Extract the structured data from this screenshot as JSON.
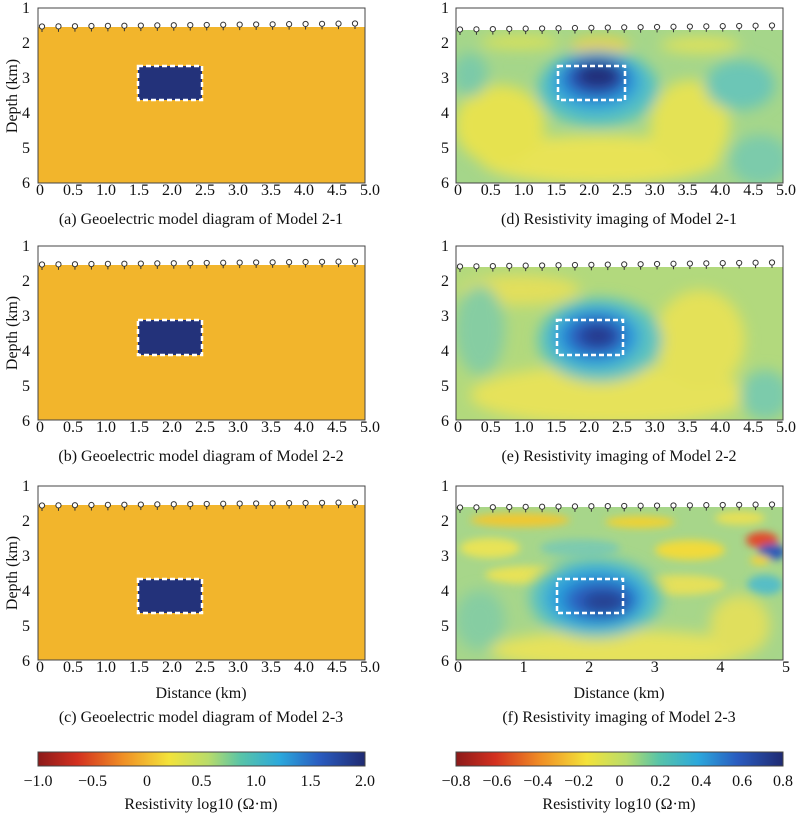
{
  "panels": [
    {
      "id": "a",
      "kind": "model",
      "caption": "(a) Geoelectric model diagram of Model 2-1",
      "ylabel": "Depth (km)",
      "xlabel": "",
      "block": {
        "x": [
          1.6,
          2.5
        ],
        "z": [
          2.65,
          3.6
        ]
      }
    },
    {
      "id": "b",
      "kind": "model",
      "caption": "(b) Geoelectric model diagram of Model 2-2",
      "ylabel": "Depth (km)",
      "xlabel": "",
      "block": {
        "x": [
          1.6,
          2.5
        ],
        "z": [
          3.1,
          4.05
        ]
      }
    },
    {
      "id": "c",
      "kind": "model",
      "caption": "(c) Geoelectric model diagram of Model 2-3",
      "ylabel": "Depth (km)",
      "xlabel": "Distance (km)",
      "block": {
        "x": [
          1.6,
          2.5
        ],
        "z": [
          3.6,
          4.55
        ]
      }
    },
    {
      "id": "d",
      "kind": "inversion",
      "caption": "(d) Resistivity imaging of Model 2-1",
      "ylabel": "",
      "xlabel": "",
      "block": {
        "x": [
          1.6,
          2.6
        ],
        "z": [
          2.65,
          3.6
        ]
      }
    },
    {
      "id": "e",
      "kind": "inversion",
      "caption": "(e) Resistivity imaging of Model 2-2",
      "ylabel": "",
      "xlabel": "",
      "block": {
        "x": [
          1.6,
          2.6
        ],
        "z": [
          3.1,
          4.1
        ]
      }
    },
    {
      "id": "f",
      "kind": "inversion",
      "caption": "(f) Resistivity imaging of Model 2-3",
      "ylabel": "",
      "xlabel": "Distance (km)",
      "block": {
        "x": [
          1.6,
          2.6
        ],
        "z": [
          3.6,
          4.6
        ]
      }
    }
  ],
  "chart_data": [
    {
      "type": "heatmap",
      "title": "(a) Geoelectric model diagram of Model 2-1",
      "xlabel": "",
      "ylabel": "Depth (km)",
      "xlim": [
        0,
        5
      ],
      "ylim": [
        1,
        6
      ],
      "surface_depth_km": 1.55,
      "background_log10": 0.0,
      "anomaly": {
        "log10": 2.0,
        "x_km": [
          1.6,
          2.5
        ],
        "depth_km": [
          2.65,
          3.6
        ]
      },
      "electrodes": 20
    },
    {
      "type": "heatmap",
      "title": "(b) Geoelectric model diagram of Model 2-2",
      "xlabel": "",
      "ylabel": "Depth (km)",
      "xlim": [
        0,
        5
      ],
      "ylim": [
        1,
        6
      ],
      "surface_depth_km": 1.55,
      "background_log10": 0.0,
      "anomaly": {
        "log10": 2.0,
        "x_km": [
          1.6,
          2.5
        ],
        "depth_km": [
          3.1,
          4.05
        ]
      },
      "electrodes": 20
    },
    {
      "type": "heatmap",
      "title": "(c) Geoelectric model diagram of Model 2-3",
      "xlabel": "Distance (km)",
      "ylabel": "Depth (km)",
      "xlim": [
        0,
        5
      ],
      "ylim": [
        1,
        6
      ],
      "surface_depth_km": 1.55,
      "background_log10": 0.0,
      "anomaly": {
        "log10": 2.0,
        "x_km": [
          1.6,
          2.5
        ],
        "depth_km": [
          3.6,
          4.55
        ]
      },
      "electrodes": 20
    },
    {
      "type": "heatmap",
      "title": "(d) Resistivity imaging of Model 2-1",
      "xlabel": "",
      "ylabel": "",
      "xlim": [
        0,
        5
      ],
      "ylim": [
        1,
        6
      ],
      "peak_log10": 0.8,
      "peak_x_km": 2.05,
      "peak_depth_km": 3.1,
      "electrodes": 20
    },
    {
      "type": "heatmap",
      "title": "(e) Resistivity imaging of Model 2-2",
      "xlabel": "",
      "ylabel": "",
      "xlim": [
        0,
        5
      ],
      "ylim": [
        1,
        6
      ],
      "peak_log10": 0.6,
      "peak_x_km": 2.05,
      "peak_depth_km": 3.75,
      "electrodes": 20
    },
    {
      "type": "heatmap",
      "title": "(f) Resistivity imaging of Model 2-3",
      "xlabel": "Distance (km)",
      "ylabel": "",
      "xlim": [
        0,
        5
      ],
      "ylim": [
        1,
        6
      ],
      "peak_log10": 0.55,
      "peak_x_km": 2.2,
      "peak_depth_km": 4.1,
      "electrodes": 20
    }
  ],
  "axes": {
    "y_ticks": [
      "1",
      "2",
      "3",
      "4",
      "5",
      "6"
    ],
    "x_ticks_fine": [
      "0",
      "0.5",
      "1.0",
      "1.5",
      "2.0",
      "2.5",
      "3.0",
      "3.5",
      "4.0",
      "4.5",
      "5.0"
    ],
    "x_ticks_coarse": [
      "0",
      "1",
      "2",
      "3",
      "4",
      "5"
    ]
  },
  "colorbars": [
    {
      "label": "Resistivity log10 (Ω·m)",
      "min": -1.0,
      "max": 2.0,
      "ticks": [
        "−1.0",
        "−0.5",
        "0",
        "0.5",
        "1.0",
        "1.5",
        "2.0"
      ]
    },
    {
      "label": "Resistivity log10 (Ω·m)",
      "min": -0.8,
      "max": 0.8,
      "ticks": [
        "−0.8",
        "−0.6",
        "−0.4",
        "−0.2",
        "0",
        "0.2",
        "0.4",
        "0.6",
        "0.8"
      ]
    }
  ],
  "colors": {
    "model_background": "#f2b52c",
    "model_block": "#23327a",
    "frame": "#444444"
  }
}
